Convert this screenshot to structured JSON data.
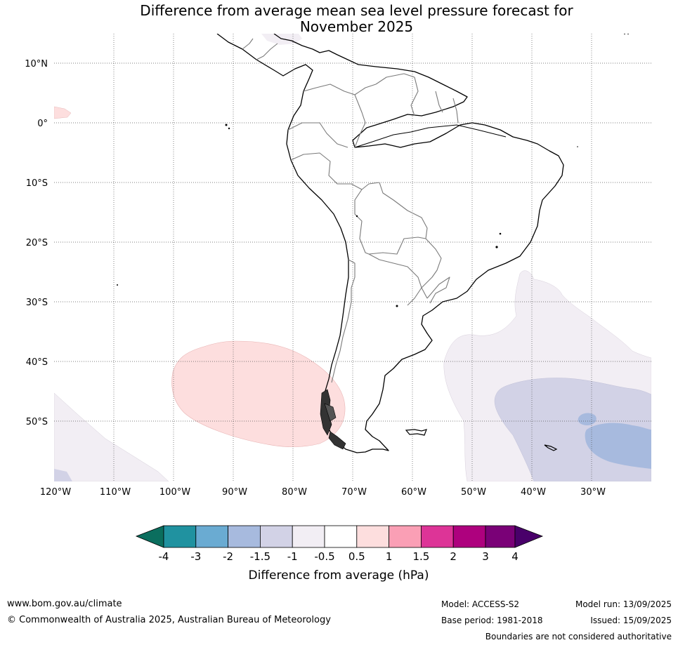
{
  "title": {
    "line1": "Difference from average mean sea level pressure forecast for",
    "line2": "November 2025"
  },
  "map": {
    "lat_labels": [
      {
        "id": "10n",
        "text": "10°N"
      },
      {
        "id": "0",
        "text": "0°"
      },
      {
        "id": "10s",
        "text": "10°S"
      },
      {
        "id": "20s",
        "text": "20°S"
      },
      {
        "id": "30s",
        "text": "30°S"
      },
      {
        "id": "40s",
        "text": "40°S"
      },
      {
        "id": "50s",
        "text": "50°S"
      }
    ],
    "lon_labels": [
      {
        "id": "120w",
        "text": "120°W"
      },
      {
        "id": "110w",
        "text": "110°W"
      },
      {
        "id": "100w",
        "text": "100°W"
      },
      {
        "id": "90w",
        "text": "90°W"
      },
      {
        "id": "80w",
        "text": "80°W"
      },
      {
        "id": "70w",
        "text": "70°W"
      },
      {
        "id": "60w",
        "text": "60°W"
      },
      {
        "id": "50w",
        "text": "50°W"
      },
      {
        "id": "40w",
        "text": "40°W"
      },
      {
        "id": "30w",
        "text": "30°W"
      }
    ],
    "gridlines": true
  },
  "colorbar": {
    "title": "Difference from average (hPa)",
    "tick_labels": [
      "-4",
      "-3",
      "-2",
      "-1.5",
      "-1",
      "-0.5",
      "0.5",
      "1",
      "1.5",
      "2",
      "3",
      "4"
    ],
    "colors": {
      "below_min": "#0b6e5e",
      "c1": "#2092a0",
      "c2": "#6aabd2",
      "c3": "#a7bade",
      "c4": "#d2d2e6",
      "c5": "#f2eef4",
      "c6": "#ffffff",
      "c7": "#fddede",
      "c8": "#fa9fb5",
      "c9": "#dd3497",
      "c10": "#ae017e",
      "c11": "#7a0177",
      "above_max": "#49006a"
    }
  },
  "footer": {
    "website": "www.bom.gov.au/climate",
    "copyright": "© Commonwealth of Australia 2025, Australian Bureau of Meteorology",
    "model": "Model: ACCESS-S2",
    "base_period": "Base period: 1981-2018",
    "model_run": "Model run: 13/09/2025",
    "issued": "Issued: 15/09/2025",
    "disclaimer": "Boundaries are not considered authoritative"
  }
}
